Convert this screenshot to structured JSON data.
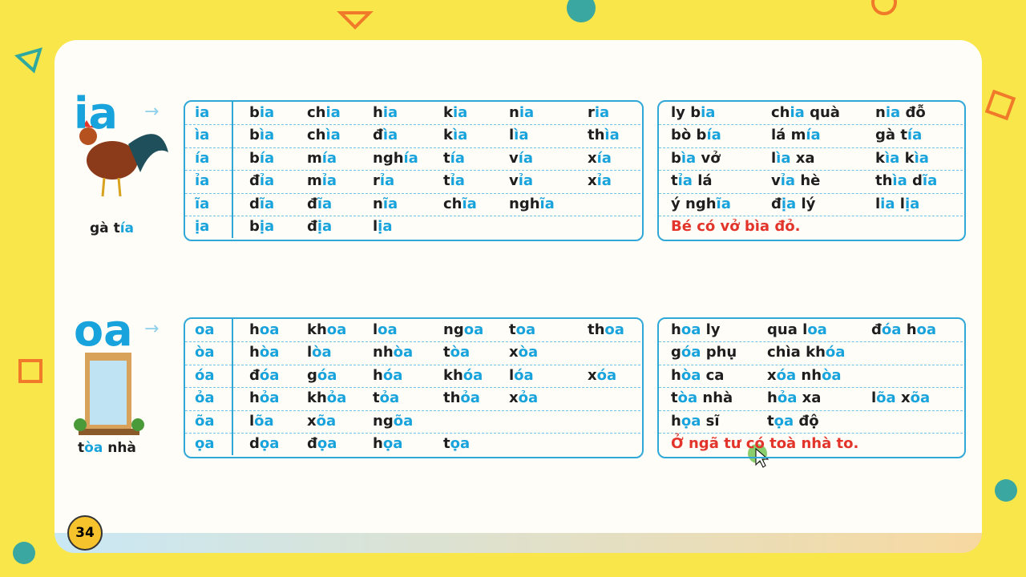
{
  "page_number": "34",
  "sections": [
    {
      "title": "ia",
      "caption": "gà tía",
      "table": [
        [
          "ia",
          "bia",
          "chia",
          "hia",
          "kia",
          "nia",
          "ria"
        ],
        [
          "ìa",
          "bìa",
          "chìa",
          "đìa",
          "kìa",
          "lìa",
          "thìa"
        ],
        [
          "ía",
          "bía",
          "mía",
          "nghía",
          "tía",
          "vía",
          "xía"
        ],
        [
          "ỉa",
          "đỉa",
          "mỉa",
          "rỉa",
          "tỉa",
          "vỉa",
          "xỉa"
        ],
        [
          "ĩa",
          "dĩa",
          "đĩa",
          "nĩa",
          "chĩa",
          "nghĩa"
        ],
        [
          "ịa",
          "bịa",
          "địa",
          "lịa"
        ]
      ],
      "phrases": [
        [
          "ly bia",
          "chia quà",
          "nia đỗ"
        ],
        [
          "bò bía",
          "lá mía",
          "gà tía"
        ],
        [
          "bìa vở",
          "lìa xa",
          "kìa kìa"
        ],
        [
          "tỉa lá",
          "vỉa hè",
          "thìa dĩa"
        ],
        [
          "ý nghĩa",
          "địa lý",
          "lia lịa"
        ]
      ],
      "sentence": "Bé có vở bìa đỏ."
    },
    {
      "title": "oa",
      "caption": "tòa nhà",
      "table": [
        [
          "oa",
          "hoa",
          "khoa",
          "loa",
          "ngoa",
          "toa",
          "thoa"
        ],
        [
          "òa",
          "hòa",
          "lòa",
          "nhòa",
          "tòa",
          "xòa"
        ],
        [
          "óa",
          "đóa",
          "góa",
          "hóa",
          "khóa",
          "lóa",
          "xóa"
        ],
        [
          "ỏa",
          "hỏa",
          "khỏa",
          "tỏa",
          "thỏa",
          "xỏa"
        ],
        [
          "õa",
          "lõa",
          "xõa",
          "ngõa"
        ],
        [
          "ọa",
          "dọa",
          "đọa",
          "họa",
          "tọa"
        ]
      ],
      "phrases": [
        [
          "hoa ly",
          "qua loa",
          "đóa hoa"
        ],
        [
          "góa phụ",
          "chìa khóa"
        ],
        [
          "hòa ca",
          "xóa nhòa"
        ],
        [
          "tòa nhà",
          "hỏa xa",
          "lõa xõa"
        ],
        [
          "họa sĩ",
          "tọa độ"
        ]
      ],
      "sentence": "Ở ngã tư có toà nhà to."
    }
  ]
}
